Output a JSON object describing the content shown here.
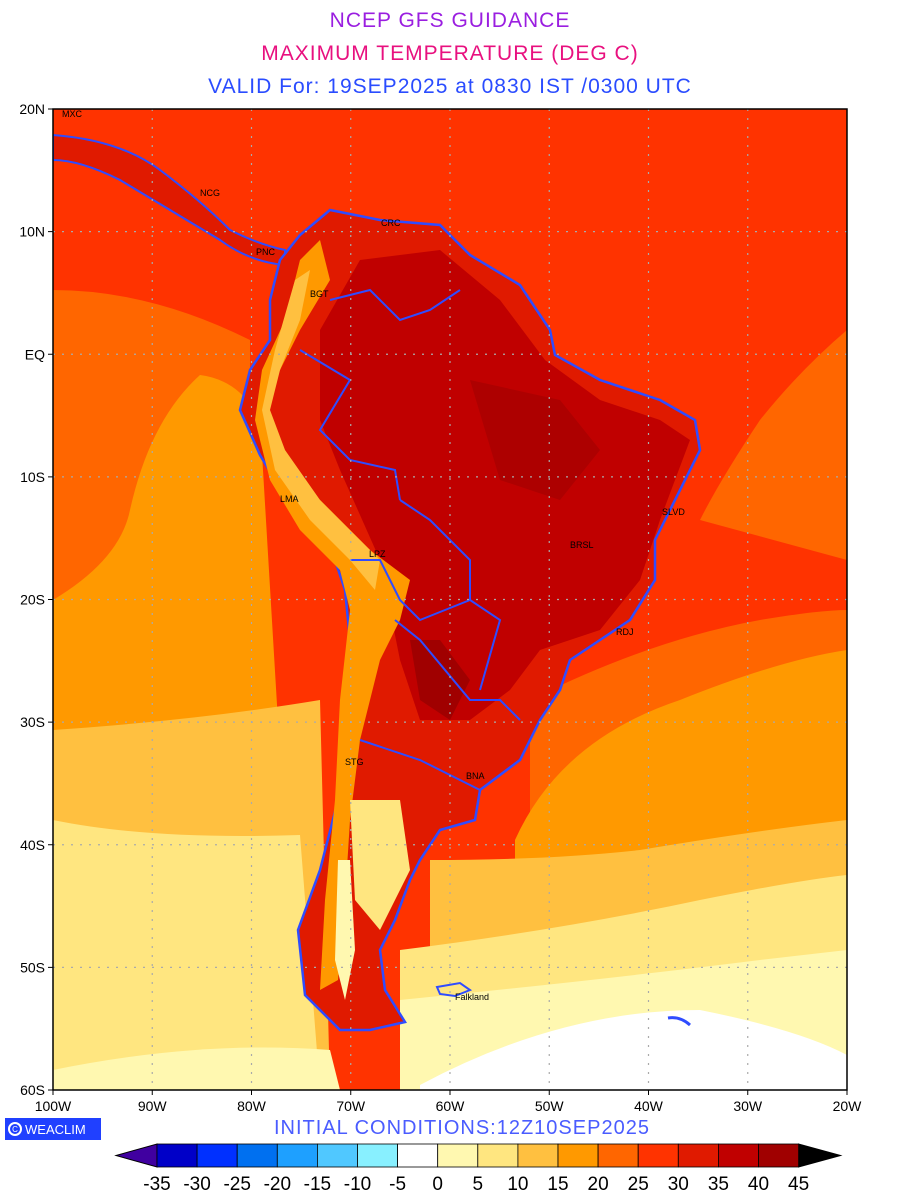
{
  "header": {
    "line1": "NCEP GFS GUIDANCE",
    "line2": "MAXIMUM TEMPERATURE (DEG C)",
    "line3": "VALID For: 19SEP2025 at 0830 IST /0300 UTC"
  },
  "axes": {
    "lat_labels": [
      "20N",
      "10N",
      "EQ",
      "10S",
      "20S",
      "30S",
      "40S",
      "50S",
      "60S"
    ],
    "lon_labels": [
      "100W",
      "90W",
      "80W",
      "70W",
      "60W",
      "50W",
      "40W",
      "30W",
      "20W"
    ]
  },
  "cities": [
    "MXC",
    "NCG",
    "PNC",
    "CRC",
    "BGT",
    "LMA",
    "LPZ",
    "BRSL",
    "SLVD",
    "RDJ",
    "STG",
    "BNA",
    "Falkland"
  ],
  "footer": {
    "logo": "WEACLIM",
    "initial": "INITIAL CONDITIONS:12Z10SEP2025"
  },
  "colorbar": {
    "labels": [
      "-35",
      "-30",
      "-25",
      "-20",
      "-15",
      "-10",
      "-5",
      "0",
      "5",
      "10",
      "15",
      "20",
      "25",
      "30",
      "35",
      "40",
      "45"
    ],
    "colors": [
      "#0000c8",
      "#0030ff",
      "#0070f0",
      "#1ea0ff",
      "#50c8ff",
      "#88f0ff",
      "#ffffff",
      "#fff8b0",
      "#ffe680",
      "#ffc040",
      "#ff9900",
      "#ff6600",
      "#ff3300",
      "#e01a00",
      "#c00000",
      "#a00000"
    ],
    "under_color": "#4000a0",
    "over_color": "#000000"
  }
}
